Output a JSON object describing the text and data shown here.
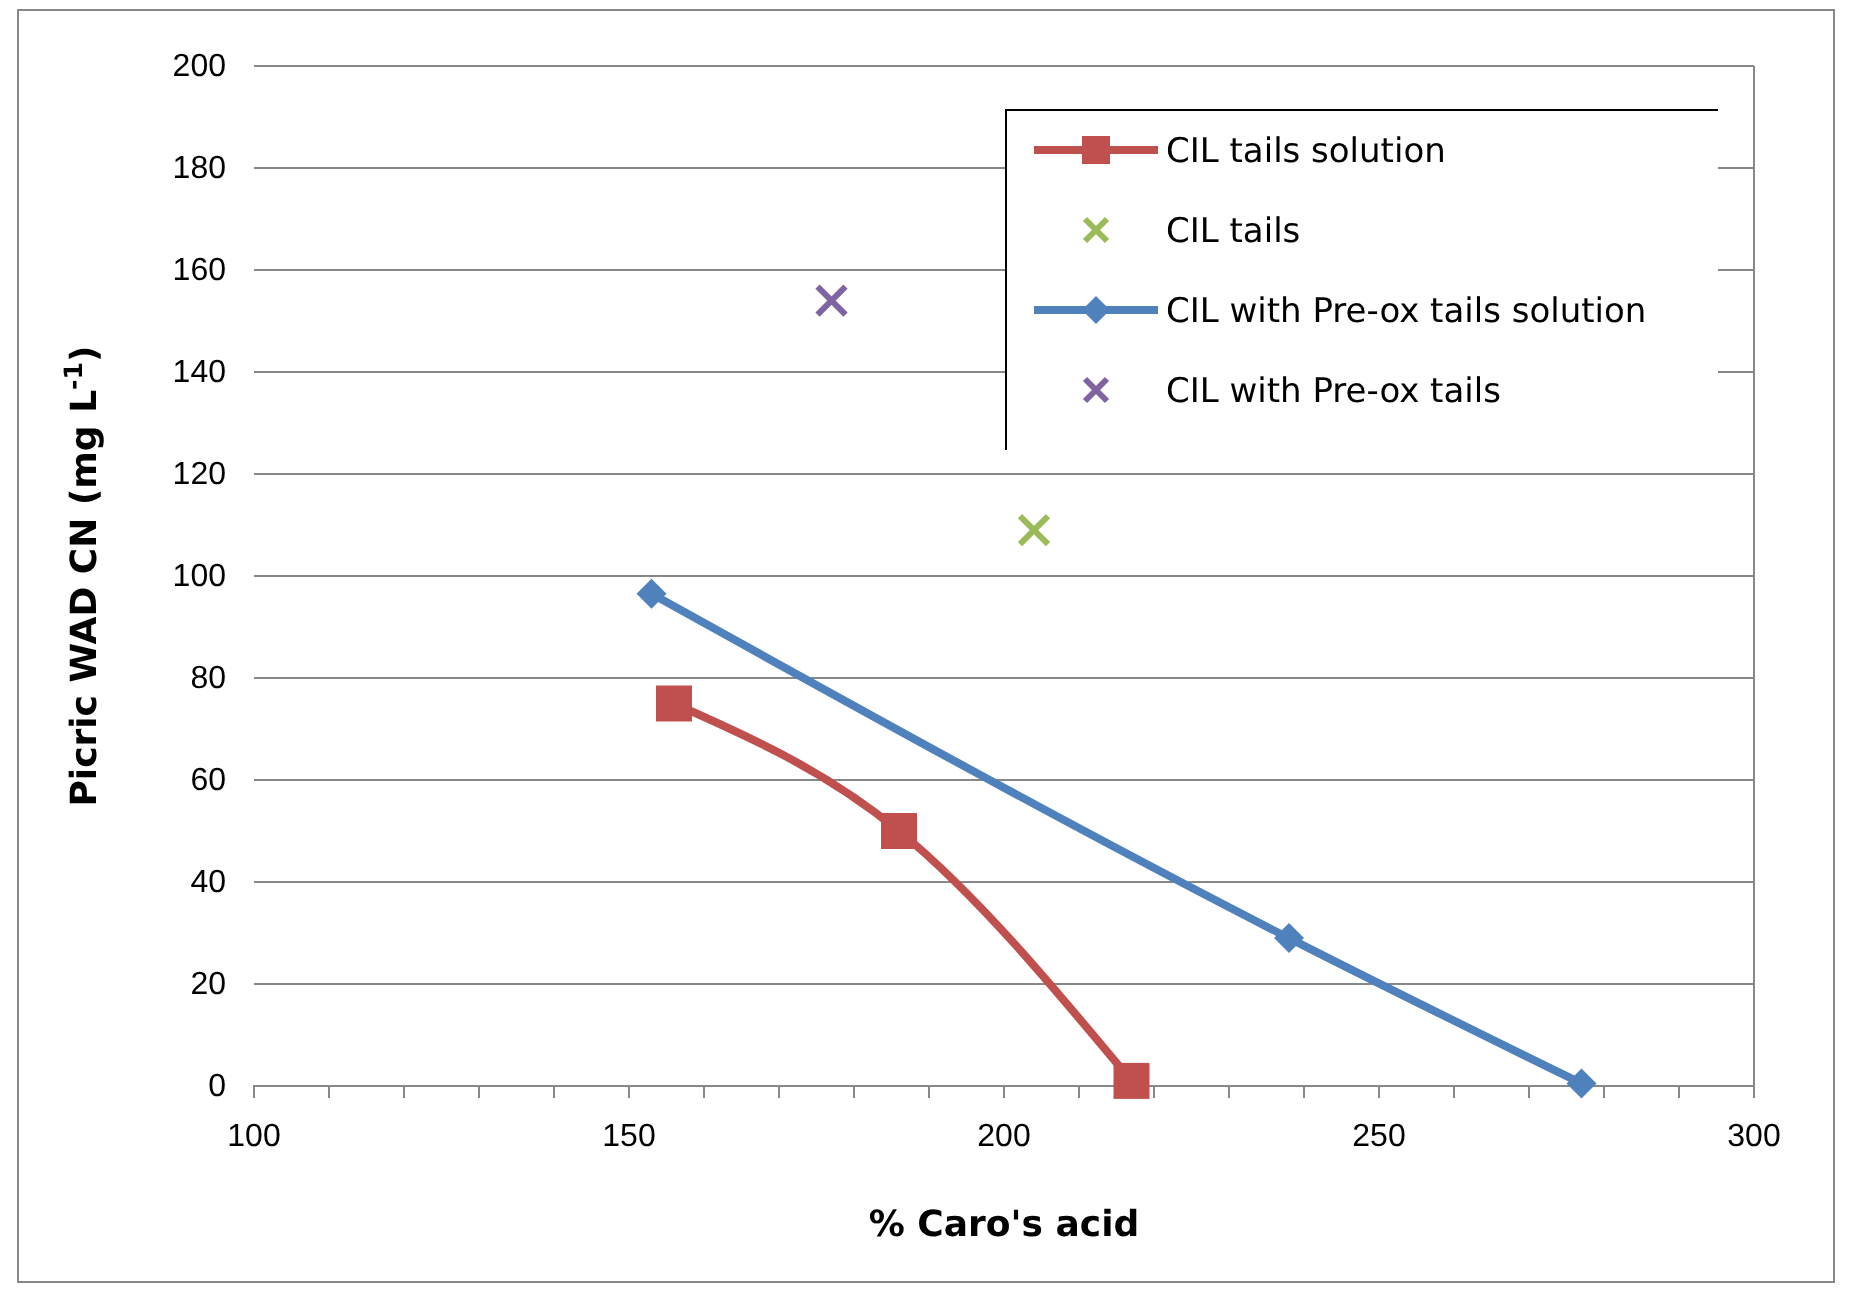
{
  "chart_data": {
    "type": "line",
    "xlabel": "% Caro's acid",
    "ylabel": "Picric WAD CN (mg L$^{-1}$)",
    "xlim": [
      100,
      300
    ],
    "xticks": [
      100,
      {
        "value": 110,
        "label": null
      },
      {
        "value": 120,
        "label": null
      },
      {
        "value": 130,
        "label": null
      },
      {
        "value": 140,
        "label": null
      },
      150,
      {
        "value": 160,
        "label": null
      },
      {
        "value": 170,
        "label": null
      },
      {
        "value": 180,
        "label": null
      },
      {
        "value": 190,
        "label": null
      },
      200,
      {
        "value": 210,
        "label": null
      },
      {
        "value": 220,
        "label": null
      },
      {
        "value": 230,
        "label": null
      },
      {
        "value": 240,
        "label": null
      },
      250,
      {
        "value": 260,
        "label": null
      },
      {
        "value": 270,
        "label": null
      },
      {
        "value": 280,
        "label": null
      },
      {
        "value": 290,
        "label": null
      },
      300
    ],
    "ylim": [
      0,
      200
    ],
    "yticks": [
      0,
      20,
      40,
      60,
      80,
      100,
      120,
      140,
      160,
      180,
      200
    ],
    "grid": "y",
    "legend": "top right",
    "series": [
      {
        "name": "CIL tails solution",
        "marker": "square",
        "color": "#c0504d",
        "x": [
          156,
          186,
          217
        ],
        "values": [
          75,
          50,
          1
        ]
      },
      {
        "name": "CIL tails",
        "type": "scatter",
        "marker": "cross",
        "color": "#9bbb59",
        "x": [
          204
        ],
        "values": [
          109
        ]
      },
      {
        "name": "CIL with Pre-ox  tails solution",
        "marker": "diamond",
        "color": "#4f81bd",
        "x": [
          153,
          238,
          277
        ],
        "values": [
          96.5,
          29,
          0.5
        ]
      },
      {
        "name": "CIL with Pre-ox  tails",
        "type": "scatter",
        "marker": "cross",
        "color": "#8064a2",
        "x": [
          177
        ],
        "values": [
          154
        ]
      }
    ]
  }
}
